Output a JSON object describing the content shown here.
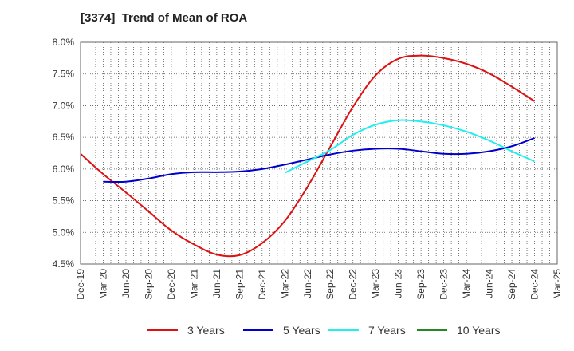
{
  "header": {
    "title": "[3374]  Trend of Mean of ROA"
  },
  "chart_data": {
    "type": "line",
    "title": "[3374]  Trend of Mean of ROA",
    "xlabel": "",
    "ylabel": "",
    "ylim": [
      4.5,
      8.0
    ],
    "yticks": [
      "8.0%",
      "7.5%",
      "7.0%",
      "6.5%",
      "6.0%",
      "5.5%",
      "5.0%",
      "4.5%"
    ],
    "ytick_values": [
      8.0,
      7.5,
      7.0,
      6.5,
      6.0,
      5.5,
      5.0,
      4.5
    ],
    "categories": [
      "Dec-19",
      "Mar-20",
      "Jun-20",
      "Sep-20",
      "Dec-20",
      "Mar-21",
      "Jun-21",
      "Sep-21",
      "Dec-21",
      "Mar-22",
      "Jun-22",
      "Sep-22",
      "Dec-22",
      "Mar-23",
      "Jun-23",
      "Sep-23",
      "Dec-23",
      "Mar-24",
      "Jun-24",
      "Sep-24",
      "Dec-24",
      "Mar-25"
    ],
    "grid": true,
    "legend_position": "bottom",
    "series": [
      {
        "name": "3 Years",
        "color": "#dd1111",
        "values": [
          6.24,
          5.92,
          5.63,
          5.33,
          5.03,
          4.81,
          4.65,
          4.64,
          4.83,
          5.18,
          5.72,
          6.35,
          6.98,
          7.48,
          7.74,
          7.79,
          7.75,
          7.66,
          7.51,
          7.3,
          7.07,
          null
        ]
      },
      {
        "name": "5 Years",
        "color": "#0000cc",
        "values": [
          null,
          5.8,
          5.8,
          5.85,
          5.92,
          5.95,
          5.95,
          5.96,
          6.0,
          6.07,
          6.15,
          6.23,
          6.29,
          6.32,
          6.32,
          6.28,
          6.24,
          6.24,
          6.28,
          6.36,
          6.49,
          null
        ]
      },
      {
        "name": "7 Years",
        "color": "#22eeee",
        "values": [
          null,
          null,
          null,
          null,
          null,
          null,
          null,
          null,
          null,
          5.94,
          6.12,
          6.3,
          6.54,
          6.7,
          6.77,
          6.75,
          6.69,
          6.59,
          6.45,
          6.28,
          6.12,
          null
        ]
      },
      {
        "name": "10 Years",
        "color": "#228822",
        "values": [
          null,
          null,
          null,
          null,
          null,
          null,
          null,
          null,
          null,
          null,
          null,
          null,
          null,
          null,
          null,
          null,
          null,
          null,
          null,
          null,
          null,
          null
        ]
      }
    ]
  }
}
